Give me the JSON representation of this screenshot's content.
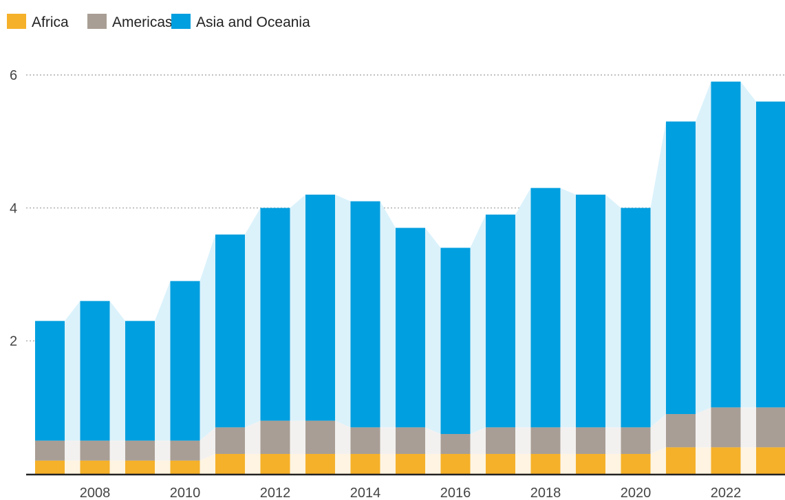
{
  "chart_data": {
    "type": "bar",
    "stacked": true,
    "title": "",
    "xlabel": "",
    "ylabel": "",
    "x": [
      2007,
      2008,
      2009,
      2010,
      2011,
      2012,
      2013,
      2014,
      2015,
      2016,
      2017,
      2018,
      2019,
      2020,
      2021,
      2022,
      2023
    ],
    "x_tick_labels": [
      "2008",
      "2010",
      "2012",
      "2014",
      "2016",
      "2018",
      "2020",
      "2022"
    ],
    "y_ticks": [
      2,
      4,
      6
    ],
    "y_tick_labels": [
      "2",
      "4",
      "6"
    ],
    "ylim": [
      0,
      6
    ],
    "grid": "horizontal dotted",
    "legend_position": "top-left",
    "series": [
      {
        "name": "Africa",
        "color": "#f5b12a",
        "values": [
          0.2,
          0.2,
          0.2,
          0.2,
          0.3,
          0.3,
          0.3,
          0.3,
          0.3,
          0.3,
          0.3,
          0.3,
          0.3,
          0.3,
          0.4,
          0.4,
          0.4
        ]
      },
      {
        "name": "Americas",
        "color": "#a89e95",
        "values": [
          0.3,
          0.3,
          0.3,
          0.3,
          0.4,
          0.5,
          0.5,
          0.4,
          0.4,
          0.3,
          0.4,
          0.4,
          0.4,
          0.4,
          0.5,
          0.6,
          0.6
        ]
      },
      {
        "name": "Asia and Oceania",
        "color": "#009fdf",
        "values": [
          1.8,
          2.1,
          1.8,
          2.4,
          2.9,
          3.2,
          3.4,
          3.4,
          3.0,
          2.8,
          3.2,
          3.6,
          3.5,
          3.3,
          4.4,
          4.9,
          4.6
        ]
      }
    ]
  }
}
